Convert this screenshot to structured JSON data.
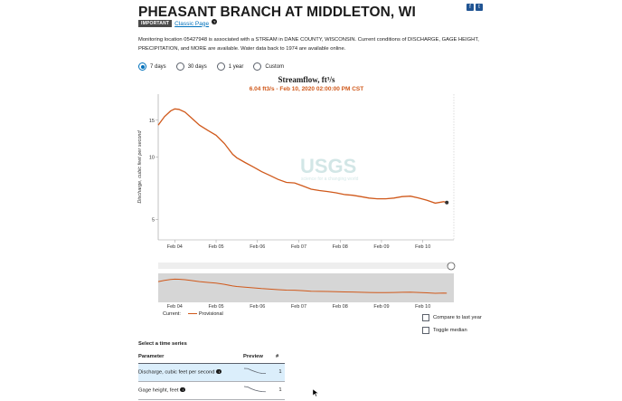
{
  "page": {
    "title": "PHEASANT BRANCH AT MIDDLETON, WI",
    "badge": "IMPORTANT",
    "classic_link": "Classic Page",
    "help_glyph": "?",
    "description": "Monitoring location 05427948 is associated with a STREAM in DANE COUNTY, WISCONSIN. Current conditions of DISCHARGE, GAGE HEIGHT, PRECIPITATION, and MORE are available. Water data back to 1974 are available online.",
    "share_icons": [
      "facebook-icon",
      "twitter-icon"
    ],
    "share_glyphs": [
      "f",
      "t"
    ]
  },
  "period": {
    "options": [
      "7 days",
      "30 days",
      "1 year",
      "Custom"
    ],
    "selected": "7 days"
  },
  "chart": {
    "title": "Streamflow, ft³/s",
    "tooltip": "6.04 ft3/s - Feb 10, 2020 02:00:00 PM CST",
    "watermark": "USGS",
    "watermark_sub": "science for a changing world"
  },
  "legend": {
    "current_label": "Current:",
    "provisional_label": "Provisional"
  },
  "toggles": {
    "compare": "Compare to last year",
    "median": "Toggle median"
  },
  "time_series": {
    "heading": "Select a time series",
    "columns": [
      "Parameter",
      "Preview",
      "#"
    ],
    "rows": [
      {
        "parameter": "Discharge, cubic feet per second",
        "count": "1",
        "selected": true
      },
      {
        "parameter": "Gage height, feet",
        "count": "1",
        "selected": false
      }
    ]
  },
  "chart_data": {
    "type": "line",
    "title": "Streamflow, ft³/s",
    "ylabel": "Discharge, cubic feet per second",
    "xlabel": "",
    "x_ticks": [
      "Feb 04",
      "Feb 05",
      "Feb 06",
      "Feb 07",
      "Feb 08",
      "Feb 09",
      "Feb 10"
    ],
    "y_ticks": [
      5,
      10,
      15
    ],
    "y_scale": "log",
    "ylim": [
      4,
      20
    ],
    "xlim": [
      3.6,
      10.75
    ],
    "grid": false,
    "colors": {
      "series": "#d0591b",
      "brush_bg": "#d6d6d6"
    },
    "series": [
      {
        "name": "Provisional",
        "x": [
          3.6,
          3.75,
          3.9,
          4.0,
          4.1,
          4.25,
          4.4,
          4.6,
          4.8,
          5.0,
          5.2,
          5.4,
          5.5,
          5.7,
          5.9,
          6.1,
          6.3,
          6.5,
          6.7,
          6.9,
          7.1,
          7.3,
          7.5,
          7.7,
          7.9,
          8.1,
          8.3,
          8.5,
          8.7,
          8.9,
          9.1,
          9.3,
          9.5,
          9.7,
          9.9,
          10.1,
          10.3,
          10.5,
          10.58
        ],
        "y": [
          14.2,
          15.6,
          16.6,
          17.0,
          16.9,
          16.4,
          15.4,
          14.2,
          13.4,
          12.7,
          11.6,
          10.3,
          9.9,
          9.4,
          8.95,
          8.5,
          8.15,
          7.8,
          7.55,
          7.5,
          7.25,
          7.0,
          6.9,
          6.82,
          6.73,
          6.6,
          6.55,
          6.45,
          6.35,
          6.3,
          6.3,
          6.35,
          6.45,
          6.48,
          6.35,
          6.2,
          6.0,
          6.1,
          6.04
        ]
      }
    ]
  }
}
